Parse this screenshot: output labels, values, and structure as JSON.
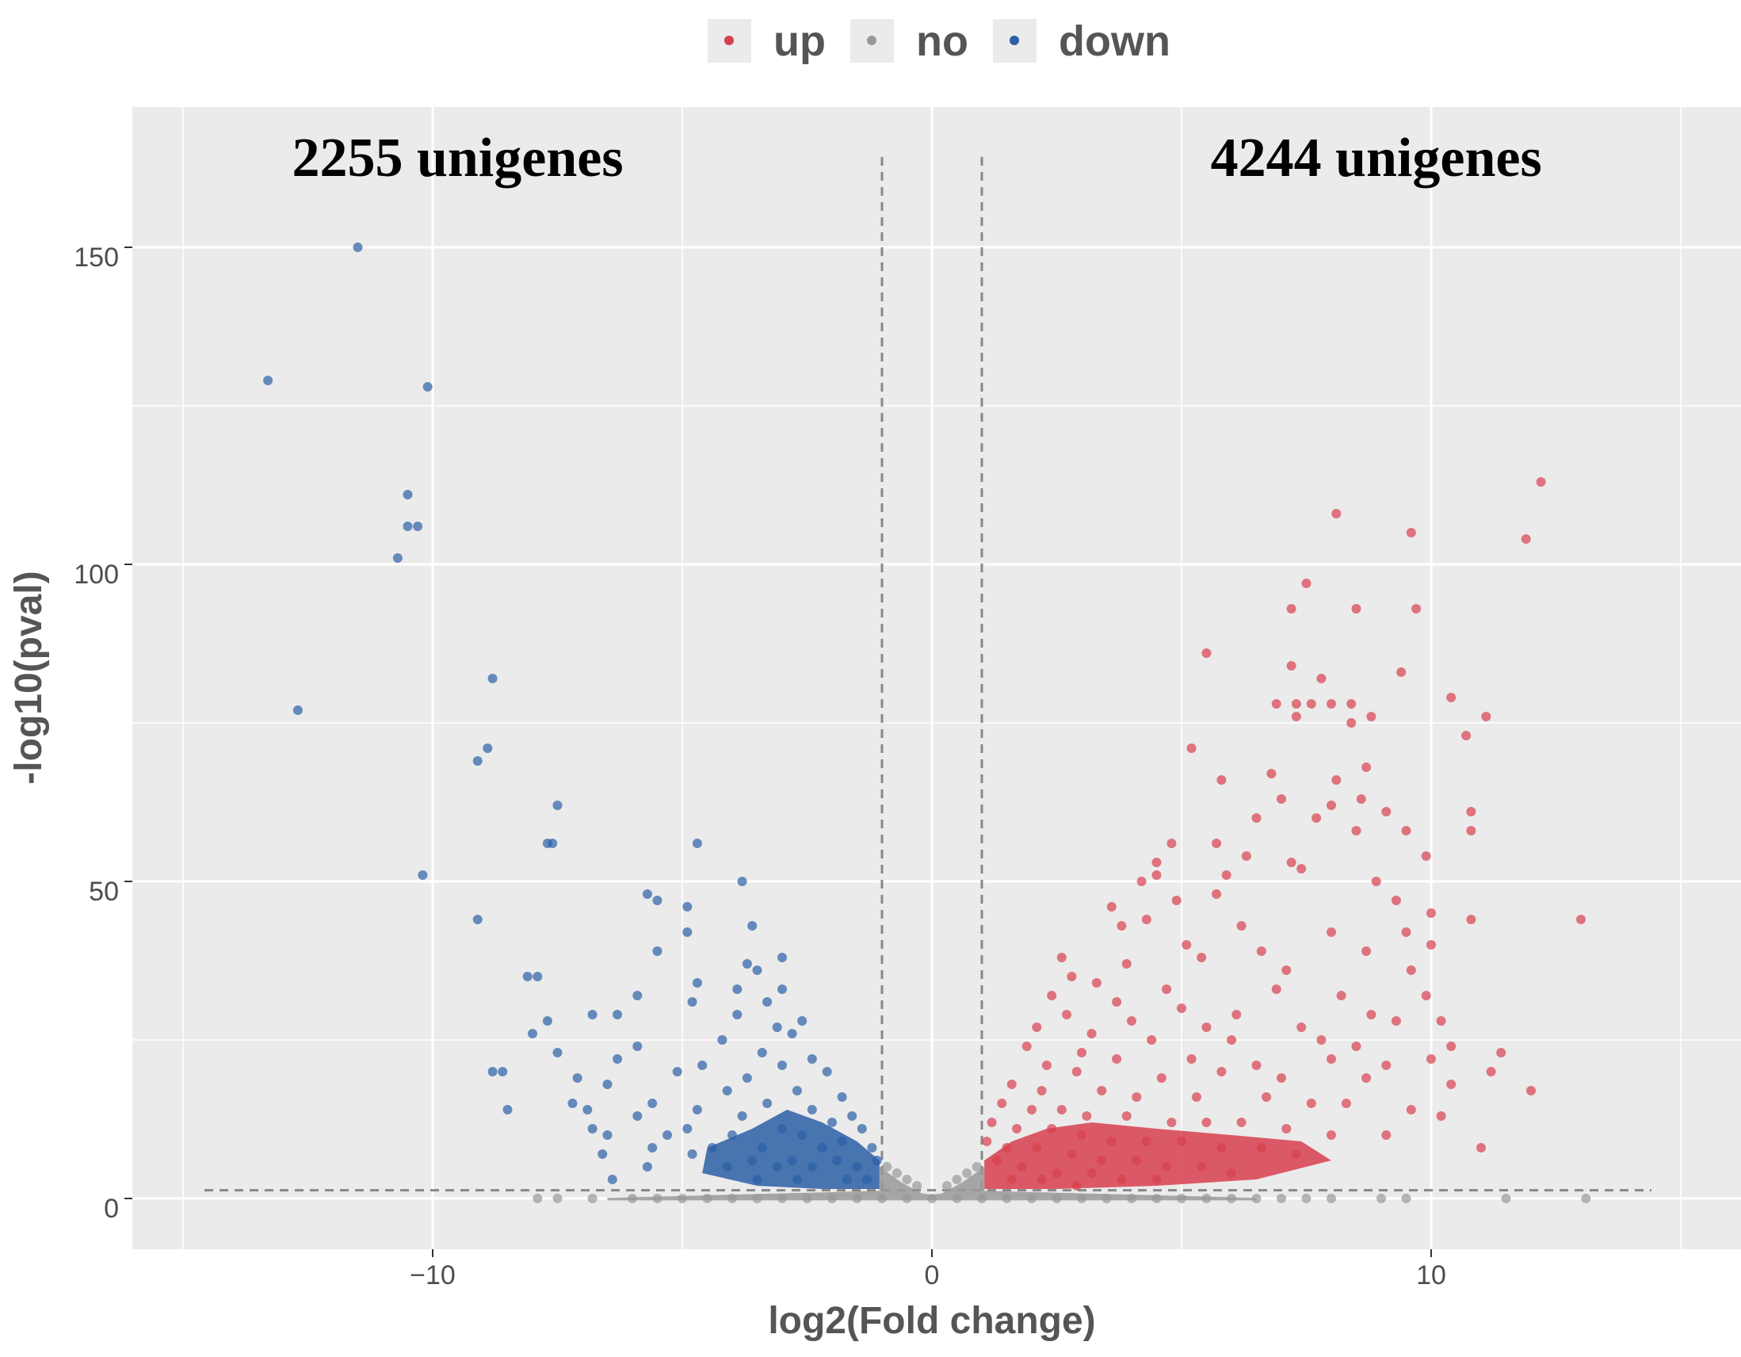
{
  "chart_data": {
    "type": "scatter",
    "title": "",
    "xlabel": "log2(Fold change)",
    "ylabel": "-log10(pval)",
    "xlim": [
      -15,
      15
    ],
    "ylim": [
      -8,
      173
    ],
    "x_ticks": [
      -10,
      0,
      10
    ],
    "x_tick_labels": [
      "−10",
      "0",
      "10"
    ],
    "y_ticks": [
      0,
      50,
      100,
      150
    ],
    "y_tick_labels": [
      "0",
      "50",
      "100",
      "150"
    ],
    "grid": true,
    "legend_position": "top",
    "thresholds": {
      "log2fc": [
        -1,
        1
      ],
      "neg_log10_pval": 1.3
    },
    "annotations": [
      {
        "text": "2255 unigenes",
        "x": -9.5,
        "y": 164
      },
      {
        "text": "4244 unigenes",
        "x": 8.9,
        "y": 164
      }
    ],
    "series": [
      {
        "name": "up",
        "color": "#d8404f",
        "points": [
          [
            12.2,
            113
          ],
          [
            8.1,
            108
          ],
          [
            9.6,
            105
          ],
          [
            11.9,
            104
          ],
          [
            7.5,
            97
          ],
          [
            7.2,
            93
          ],
          [
            8.5,
            93
          ],
          [
            9.7,
            93
          ],
          [
            5.5,
            86
          ],
          [
            7.2,
            84
          ],
          [
            7.8,
            82
          ],
          [
            9.4,
            83
          ],
          [
            6.9,
            78
          ],
          [
            7.3,
            78
          ],
          [
            7.6,
            78
          ],
          [
            8.0,
            78
          ],
          [
            8.4,
            78
          ],
          [
            10.4,
            79
          ],
          [
            7.3,
            76
          ],
          [
            8.8,
            76
          ],
          [
            11.1,
            76
          ],
          [
            8.4,
            75
          ],
          [
            10.7,
            73
          ],
          [
            5.2,
            71
          ],
          [
            6.8,
            67
          ],
          [
            5.8,
            66
          ],
          [
            8.1,
            66
          ],
          [
            8.7,
            68
          ],
          [
            10.8,
            61
          ],
          [
            7.0,
            63
          ],
          [
            8.6,
            63
          ],
          [
            8.0,
            62
          ],
          [
            6.5,
            60
          ],
          [
            7.7,
            60
          ],
          [
            9.1,
            61
          ],
          [
            10.8,
            58
          ],
          [
            4.8,
            56
          ],
          [
            5.7,
            56
          ],
          [
            8.5,
            58
          ],
          [
            9.5,
            58
          ],
          [
            9.9,
            54
          ],
          [
            4.5,
            53
          ],
          [
            6.3,
            54
          ],
          [
            7.2,
            53
          ],
          [
            4.2,
            50
          ],
          [
            4.5,
            51
          ],
          [
            5.9,
            51
          ],
          [
            7.4,
            52
          ],
          [
            8.9,
            50
          ],
          [
            5.7,
            48
          ],
          [
            3.6,
            46
          ],
          [
            4.9,
            47
          ],
          [
            9.3,
            47
          ],
          [
            10.0,
            45
          ],
          [
            10.8,
            44
          ],
          [
            13.0,
            44
          ],
          [
            4.3,
            44
          ],
          [
            3.8,
            43
          ],
          [
            6.2,
            43
          ],
          [
            8.0,
            42
          ],
          [
            9.5,
            42
          ],
          [
            5.1,
            40
          ],
          [
            6.6,
            39
          ],
          [
            8.7,
            39
          ],
          [
            10.0,
            40
          ],
          [
            2.6,
            38
          ],
          [
            3.9,
            37
          ],
          [
            5.4,
            38
          ],
          [
            7.1,
            36
          ],
          [
            9.6,
            36
          ],
          [
            2.8,
            35
          ],
          [
            3.3,
            34
          ],
          [
            4.7,
            33
          ],
          [
            6.9,
            33
          ],
          [
            8.2,
            32
          ],
          [
            9.9,
            32
          ],
          [
            2.4,
            32
          ],
          [
            3.7,
            31
          ],
          [
            5.0,
            30
          ],
          [
            6.1,
            29
          ],
          [
            8.8,
            29
          ],
          [
            10.2,
            28
          ],
          [
            2.7,
            29
          ],
          [
            4.0,
            28
          ],
          [
            5.5,
            27
          ],
          [
            7.4,
            27
          ],
          [
            9.3,
            28
          ],
          [
            2.1,
            27
          ],
          [
            3.2,
            26
          ],
          [
            4.4,
            25
          ],
          [
            6.0,
            25
          ],
          [
            7.8,
            25
          ],
          [
            8.5,
            24
          ],
          [
            10.4,
            24
          ],
          [
            11.4,
            23
          ],
          [
            1.9,
            24
          ],
          [
            3.0,
            23
          ],
          [
            3.7,
            22
          ],
          [
            5.2,
            22
          ],
          [
            6.5,
            21
          ],
          [
            8.0,
            22
          ],
          [
            9.1,
            21
          ],
          [
            10.0,
            22
          ],
          [
            11.2,
            20
          ],
          [
            2.3,
            21
          ],
          [
            2.9,
            20
          ],
          [
            4.6,
            19
          ],
          [
            5.8,
            20
          ],
          [
            7.0,
            19
          ],
          [
            8.7,
            19
          ],
          [
            10.4,
            18
          ],
          [
            12.0,
            17
          ],
          [
            1.6,
            18
          ],
          [
            2.2,
            17
          ],
          [
            3.4,
            17
          ],
          [
            4.1,
            16
          ],
          [
            5.3,
            16
          ],
          [
            6.7,
            16
          ],
          [
            7.6,
            15
          ],
          [
            8.3,
            15
          ],
          [
            9.6,
            14
          ],
          [
            10.2,
            13
          ],
          [
            1.4,
            15
          ],
          [
            2.0,
            14
          ],
          [
            2.6,
            14
          ],
          [
            3.1,
            13
          ],
          [
            3.9,
            13
          ],
          [
            4.8,
            12
          ],
          [
            5.5,
            12
          ],
          [
            6.2,
            12
          ],
          [
            7.1,
            11
          ],
          [
            8.0,
            10
          ],
          [
            9.1,
            10
          ],
          [
            11.0,
            8
          ],
          [
            1.2,
            12
          ],
          [
            1.7,
            11
          ],
          [
            2.4,
            11
          ],
          [
            3.0,
            10
          ],
          [
            3.6,
            9
          ],
          [
            4.3,
            9
          ],
          [
            5.0,
            9
          ],
          [
            5.8,
            8
          ],
          [
            6.6,
            8
          ],
          [
            7.3,
            7
          ],
          [
            1.1,
            9
          ],
          [
            1.5,
            8
          ],
          [
            2.1,
            8
          ],
          [
            2.8,
            7
          ],
          [
            3.4,
            6
          ],
          [
            4.1,
            6
          ],
          [
            4.7,
            5
          ],
          [
            5.4,
            5
          ],
          [
            6.0,
            4
          ],
          [
            1.3,
            6
          ],
          [
            1.8,
            5
          ],
          [
            2.5,
            4
          ],
          [
            3.2,
            4
          ],
          [
            3.8,
            3
          ],
          [
            4.5,
            3
          ],
          [
            1.6,
            3
          ],
          [
            2.2,
            3
          ],
          [
            2.9,
            2
          ]
        ]
      },
      {
        "name": "no",
        "color": "#999999",
        "points": [
          [
            -7.9,
            0
          ],
          [
            -7.5,
            0
          ],
          [
            -6.8,
            0
          ],
          [
            -6.0,
            0
          ],
          [
            -5.5,
            0
          ],
          [
            -5.0,
            0
          ],
          [
            -4.5,
            0
          ],
          [
            -4.0,
            0
          ],
          [
            -3.5,
            0
          ],
          [
            -3.0,
            0
          ],
          [
            -2.5,
            0
          ],
          [
            -2.0,
            0
          ],
          [
            -1.5,
            0
          ],
          [
            -1.0,
            0
          ],
          [
            -0.5,
            0
          ],
          [
            0,
            0
          ],
          [
            0.5,
            0
          ],
          [
            1.0,
            0
          ],
          [
            1.5,
            0
          ],
          [
            2.0,
            0
          ],
          [
            2.5,
            0
          ],
          [
            3.0,
            0
          ],
          [
            3.5,
            0
          ],
          [
            4.0,
            0
          ],
          [
            4.5,
            0
          ],
          [
            5.0,
            0
          ],
          [
            5.5,
            0
          ],
          [
            6.0,
            0
          ],
          [
            6.5,
            0
          ],
          [
            7.0,
            0
          ],
          [
            7.5,
            0
          ],
          [
            8.0,
            0
          ],
          [
            9.0,
            0
          ],
          [
            9.5,
            0
          ],
          [
            11.5,
            0
          ],
          [
            13.1,
            0
          ],
          [
            -0.9,
            5
          ],
          [
            -0.7,
            4
          ],
          [
            -0.5,
            3
          ],
          [
            -0.3,
            2
          ],
          [
            0.3,
            2
          ],
          [
            0.5,
            3
          ],
          [
            0.7,
            4
          ],
          [
            0.9,
            5
          ]
        ]
      },
      {
        "name": "down",
        "color": "#2b5fa6",
        "points": [
          [
            -11.5,
            150
          ],
          [
            -13.3,
            129
          ],
          [
            -10.1,
            128
          ],
          [
            -10.5,
            111
          ],
          [
            -10.5,
            106
          ],
          [
            -10.3,
            106
          ],
          [
            -10.7,
            101
          ],
          [
            -8.8,
            82
          ],
          [
            -12.7,
            77
          ],
          [
            -8.9,
            71
          ],
          [
            -9.1,
            69
          ],
          [
            -7.5,
            62
          ],
          [
            -7.6,
            56
          ],
          [
            -7.7,
            56
          ],
          [
            -4.7,
            56
          ],
          [
            -10.2,
            51
          ],
          [
            -3.8,
            50
          ],
          [
            -5.7,
            48
          ],
          [
            -5.5,
            47
          ],
          [
            -4.9,
            46
          ],
          [
            -9.1,
            44
          ],
          [
            -3.6,
            43
          ],
          [
            -4.9,
            42
          ],
          [
            -3.0,
            38
          ],
          [
            -5.5,
            39
          ],
          [
            -3.7,
            37
          ],
          [
            -3.5,
            36
          ],
          [
            -7.9,
            35
          ],
          [
            -8.1,
            35
          ],
          [
            -4.7,
            34
          ],
          [
            -3.9,
            33
          ],
          [
            -3.0,
            33
          ],
          [
            -5.9,
            32
          ],
          [
            -4.8,
            31
          ],
          [
            -3.3,
            31
          ],
          [
            -6.8,
            29
          ],
          [
            -6.3,
            29
          ],
          [
            -3.9,
            29
          ],
          [
            -2.6,
            28
          ],
          [
            -7.7,
            28
          ],
          [
            -3.1,
            27
          ],
          [
            -8.0,
            26
          ],
          [
            -2.8,
            26
          ],
          [
            -4.2,
            25
          ],
          [
            -5.9,
            24
          ],
          [
            -7.5,
            23
          ],
          [
            -3.4,
            23
          ],
          [
            -2.4,
            22
          ],
          [
            -6.3,
            22
          ],
          [
            -4.6,
            21
          ],
          [
            -3.0,
            21
          ],
          [
            -8.8,
            20
          ],
          [
            -8.6,
            20
          ],
          [
            -5.1,
            20
          ],
          [
            -2.1,
            20
          ],
          [
            -7.1,
            19
          ],
          [
            -3.7,
            19
          ],
          [
            -6.5,
            18
          ],
          [
            -4.1,
            17
          ],
          [
            -2.7,
            17
          ],
          [
            -1.8,
            16
          ],
          [
            -7.2,
            15
          ],
          [
            -5.6,
            15
          ],
          [
            -3.3,
            15
          ],
          [
            -8.5,
            14
          ],
          [
            -6.9,
            14
          ],
          [
            -4.7,
            14
          ],
          [
            -2.4,
            14
          ],
          [
            -1.6,
            13
          ],
          [
            -5.9,
            13
          ],
          [
            -3.8,
            13
          ],
          [
            -2.0,
            12
          ],
          [
            -6.8,
            11
          ],
          [
            -4.9,
            11
          ],
          [
            -3.0,
            11
          ],
          [
            -1.4,
            11
          ],
          [
            -6.5,
            10
          ],
          [
            -5.3,
            10
          ],
          [
            -4.0,
            10
          ],
          [
            -2.6,
            10
          ],
          [
            -1.8,
            9
          ],
          [
            -5.6,
            8
          ],
          [
            -4.4,
            8
          ],
          [
            -3.4,
            8
          ],
          [
            -2.2,
            8
          ],
          [
            -1.2,
            8
          ],
          [
            -6.6,
            7
          ],
          [
            -4.8,
            7
          ],
          [
            -3.6,
            6
          ],
          [
            -2.8,
            6
          ],
          [
            -1.9,
            6
          ],
          [
            -1.1,
            6
          ],
          [
            -4.1,
            5
          ],
          [
            -3.1,
            5
          ],
          [
            -2.4,
            5
          ],
          [
            -1.5,
            5
          ],
          [
            -5.7,
            5
          ],
          [
            -6.4,
            3
          ],
          [
            -3.5,
            3
          ],
          [
            -2.7,
            3
          ],
          [
            -1.7,
            3
          ],
          [
            -1.3,
            3
          ]
        ]
      }
    ]
  }
}
